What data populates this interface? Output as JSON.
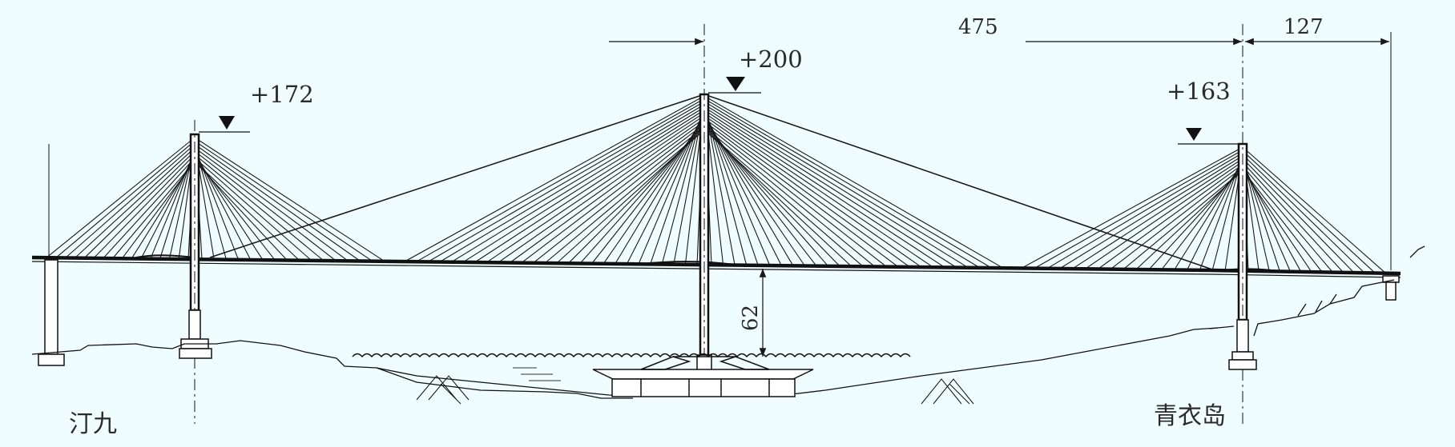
{
  "elevations": {
    "left": "+172",
    "center": "+200",
    "right": "+163"
  },
  "dimensions": {
    "span_main": "475",
    "span_side": "127",
    "clearance": "62"
  },
  "places": {
    "left": "汀九",
    "right": "青衣岛"
  },
  "colors": {
    "background": "#effdfe",
    "ink": "#1a1a1a"
  }
}
